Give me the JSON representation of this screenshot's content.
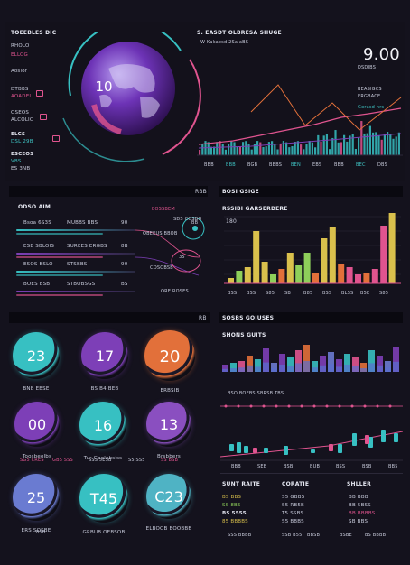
{
  "colors": {
    "teal": "#37c0c2",
    "pink": "#e0548f",
    "purple": "#7d3fb7",
    "orange": "#e2703a",
    "yellow": "#d9c04c",
    "green": "#8ecf5a",
    "bg": "#14121d"
  },
  "top_left": {
    "title": "TOEEBLES DIC",
    "items": [
      "RHOLO",
      "ELLOG",
      "Aoslor",
      "DTBBS",
      "AOADEL",
      "OSEOS",
      "ALCOLIO",
      "ELCS",
      "DSL 29B",
      "ESCEOS",
      "VBS",
      "ES 3NB",
      "CRSB",
      "VSB"
    ]
  },
  "globe": {
    "value": "10"
  },
  "top_right": {
    "title": "S. EASDT OLBRESA SHUGE",
    "subtitle": "W Kakaesd 2Sa aBS",
    "big_value": "9.00",
    "notes": [
      "DSDIBS",
      "BEASIGCS",
      "ERGBACE",
      "Gorasd hrs"
    ],
    "axis": [
      "BBB",
      "BBB",
      "BGB",
      "BBBS",
      "BEN",
      "EBS",
      "BBB",
      "BEC",
      "DBS"
    ]
  },
  "left_list": {
    "title": "ODSO AIM",
    "header_tag": "RBB",
    "rows": [
      {
        "a": "Bsoa 6S3S",
        "b": "MUBBS BBS",
        "v": "90"
      },
      {
        "a": "ESB SBLOIS",
        "b": "SUREES ERGBS",
        "v": "8B"
      },
      {
        "a": "ESOS BSLO",
        "b": "STSBBS",
        "v": "90"
      },
      {
        "a": "BOES BSB",
        "b": "STBOBSGS",
        "v": "BS"
      }
    ],
    "tags": [
      "BOSSBEM",
      "OBEEUS BBOB",
      "COSOBSB",
      "ORE ROSES",
      "SDS COSBO"
    ],
    "side_values": [
      "BB",
      "35"
    ]
  },
  "bar_chart": {
    "title": "BOSI GSIGE",
    "subtitle": "RSSIBI GARSERDERE",
    "tick": "180",
    "x_labels": [
      "BSS",
      "BSS",
      "S85",
      "SB",
      "B85",
      "BSS",
      "BLSS",
      "B5E",
      "S85"
    ]
  },
  "gauges_header": {
    "title": "",
    "tag": "RB"
  },
  "gauges": [
    {
      "value": "23",
      "label": "BNB EBSE",
      "color": "#37c0c2"
    },
    {
      "value": "17",
      "label": "BS B4 BEB",
      "color": "#7d3fb7"
    },
    {
      "value": "20",
      "label": "ERBSIB",
      "color": "#e2703a"
    },
    {
      "value": "00",
      "label": "Toosbeolbs",
      "color": "#7d3fb7"
    },
    {
      "value": "16",
      "label": "Tur Gbolobsiss",
      "color": "#37c0c2"
    },
    {
      "value": "13",
      "label": "Brsbbers",
      "color": "#8a4fc0"
    },
    {
      "value": "25",
      "label": "ERS SOSBE",
      "color": "#6a7bd1"
    },
    {
      "value": "T45",
      "label": "GRBUB OEBSOB",
      "color": "#37c0c2"
    },
    {
      "value": "C23",
      "label": "ELBOOB BOOBBB",
      "color": "#4fb3c4"
    }
  ],
  "gauge_sub": [
    "SG5 CRES",
    "GBS SSS",
    "SSS 5ESB",
    "S5 SS5",
    "SS BSB",
    "BSB"
  ],
  "right_charts": {
    "title": "SOSBS GOIUSES",
    "subtitle": "SHONS GUITS",
    "caption": "BSO BOEBS SBRSB TBS",
    "x_labels": [
      "BBB",
      "SEB",
      "BSB",
      "BUB",
      "BSS",
      "BSB",
      "BB5"
    ]
  },
  "bottom_table": {
    "title_a": "SUNT RAITE",
    "title_b": "CORATIE",
    "title_c": "SHLLER",
    "col_a": [
      "BS BBS",
      "SS 8B5",
      "BS 5555",
      "85 BBBBS"
    ],
    "col_b": [
      "S5 GBBS",
      "S5 RB5B",
      "T5 SSBS",
      "S5 BBBS"
    ],
    "col_c": [
      "BB BBB",
      "BB 5BSS",
      "BB BBBBS",
      "SB BBS"
    ],
    "footer": [
      "SSS BBBB",
      "SSB B55",
      "BBSB",
      "BSBE",
      "BS BBBB"
    ]
  }
}
